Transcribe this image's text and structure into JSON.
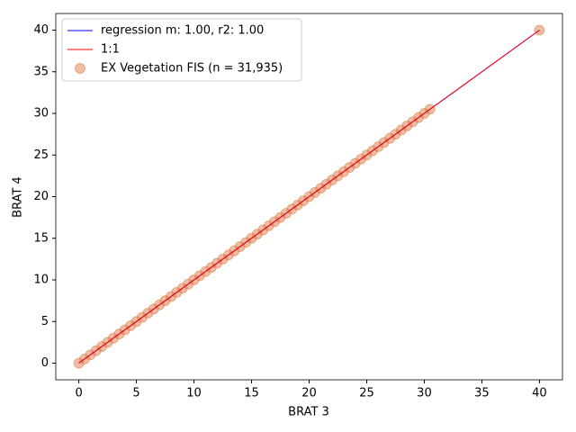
{
  "chart_data": {
    "type": "scatter",
    "x_label": "BRAT 3",
    "y_label": "BRAT 4",
    "xlim": [
      -2,
      42
    ],
    "ylim": [
      -2,
      42
    ],
    "xticks": [
      0,
      5,
      10,
      15,
      20,
      25,
      30,
      35,
      40
    ],
    "yticks": [
      0,
      5,
      10,
      15,
      20,
      25,
      30,
      35,
      40
    ],
    "legend": "upper left",
    "series": [
      {
        "name": "regression m: 1.00, r2: 1.00",
        "type": "line",
        "color": "#0000ff",
        "x": [
          0,
          40
        ],
        "values": [
          0,
          40
        ]
      },
      {
        "name": "1:1",
        "type": "line",
        "color": "#ff0000",
        "x": [
          0,
          40
        ],
        "values": [
          0,
          40
        ]
      },
      {
        "name": "EX Vegetation FIS (n = 31,935)",
        "type": "scatter",
        "color": "#e07b45",
        "x": [
          0,
          0.5,
          1,
          1.5,
          2,
          2.5,
          3,
          3.5,
          4,
          4.5,
          5,
          5.5,
          6,
          6.5,
          7,
          7.5,
          8,
          8.5,
          9,
          9.5,
          10,
          10.5,
          11,
          11.5,
          12,
          12.5,
          13,
          13.5,
          14,
          14.5,
          15,
          15.5,
          16,
          16.5,
          17,
          17.5,
          18,
          18.5,
          19,
          19.5,
          20,
          20.5,
          21,
          21.5,
          22,
          22.5,
          23,
          23.5,
          24,
          24.5,
          25,
          25.5,
          26,
          26.5,
          27,
          27.5,
          28,
          28.5,
          29,
          29.5,
          30,
          30.5,
          40
        ],
        "values": [
          0,
          0.5,
          1,
          1.5,
          2,
          2.5,
          3,
          3.5,
          4,
          4.5,
          5,
          5.5,
          6,
          6.5,
          7,
          7.5,
          8,
          8.5,
          9,
          9.5,
          10,
          10.5,
          11,
          11.5,
          12,
          12.5,
          13,
          13.5,
          14,
          14.5,
          15,
          15.5,
          16,
          16.5,
          17,
          17.5,
          18,
          18.5,
          19,
          19.5,
          20,
          20.5,
          21,
          21.5,
          22,
          22.5,
          23,
          23.5,
          24,
          24.5,
          25,
          25.5,
          26,
          26.5,
          27,
          27.5,
          28,
          28.5,
          29,
          29.5,
          30,
          30.5,
          40
        ]
      }
    ]
  }
}
